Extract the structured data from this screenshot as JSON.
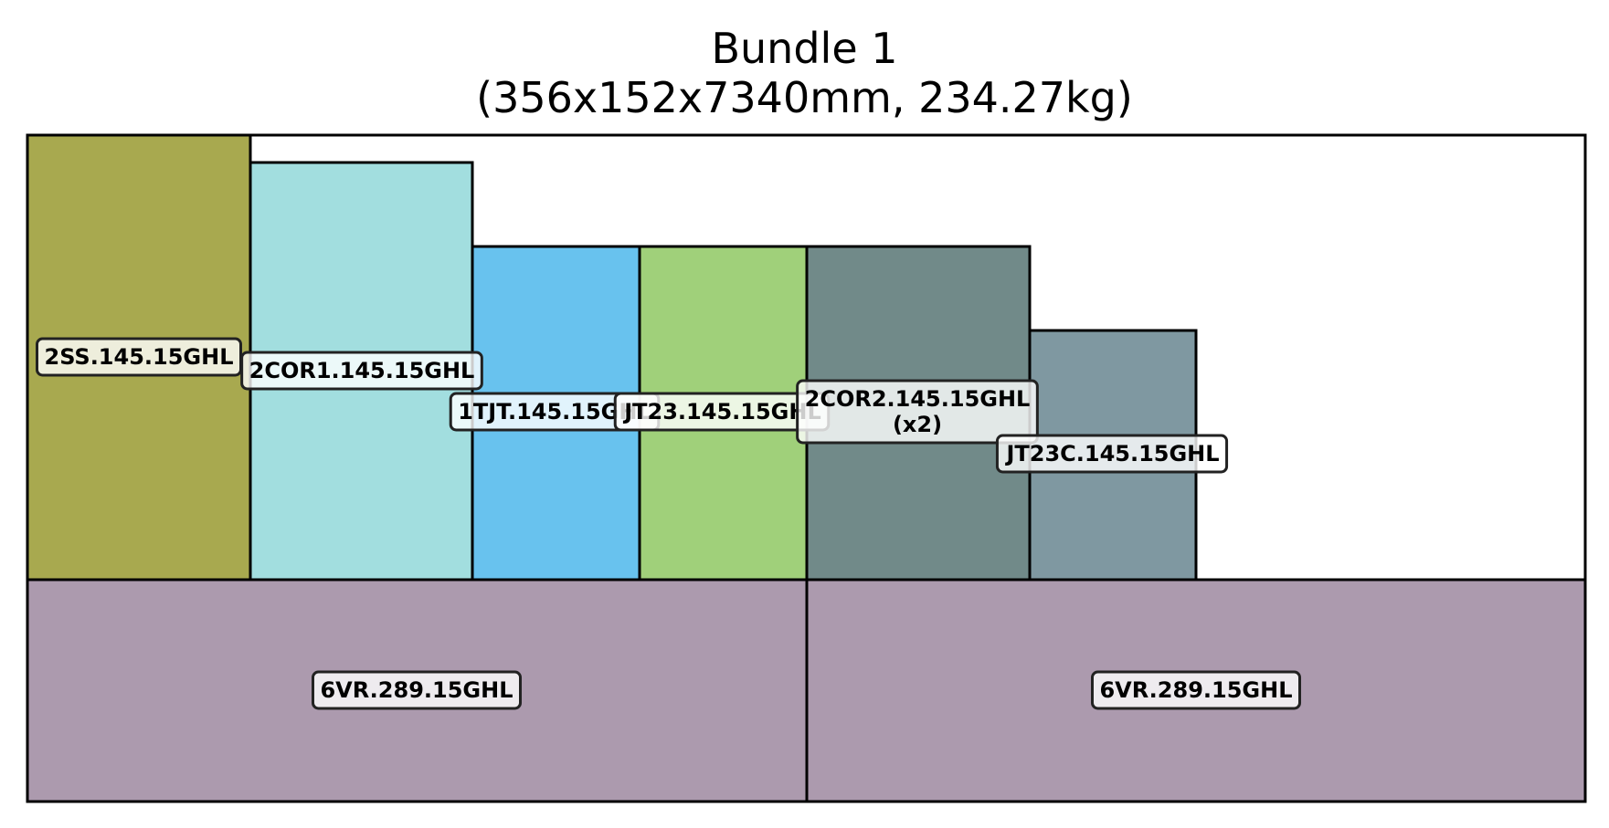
{
  "title": {
    "line1": "Bundle 1",
    "line2": "(356x152x7340mm, 234.27kg)"
  },
  "colors": {
    "outline": "#000000",
    "label_bg": "#ffffff"
  },
  "pieces": [
    {
      "id": "p-2ss",
      "label": "2SS.145.15GHL",
      "color": "#a8a94f"
    },
    {
      "id": "p-2cor1",
      "label": "2COR1.145.15GHL",
      "color": "#a2dedf"
    },
    {
      "id": "p-1tjt",
      "label": "1TJT.145.15GHL",
      "color": "#68c2ee"
    },
    {
      "id": "p-jt23",
      "label": "JT23.145.15GHL",
      "color": "#a0d07a"
    },
    {
      "id": "p-2cor2",
      "label": "2COR2.145.15GHL\n(x2)",
      "color": "#718a89"
    },
    {
      "id": "p-jt23c",
      "label": "JT23C.145.15GHL",
      "color": "#7f98a1"
    },
    {
      "id": "p-6vr-a",
      "label": "6VR.289.15GHL",
      "color": "#ac9aae"
    },
    {
      "id": "p-6vr-b",
      "label": "6VR.289.15GHL",
      "color": "#ac9aae"
    }
  ]
}
